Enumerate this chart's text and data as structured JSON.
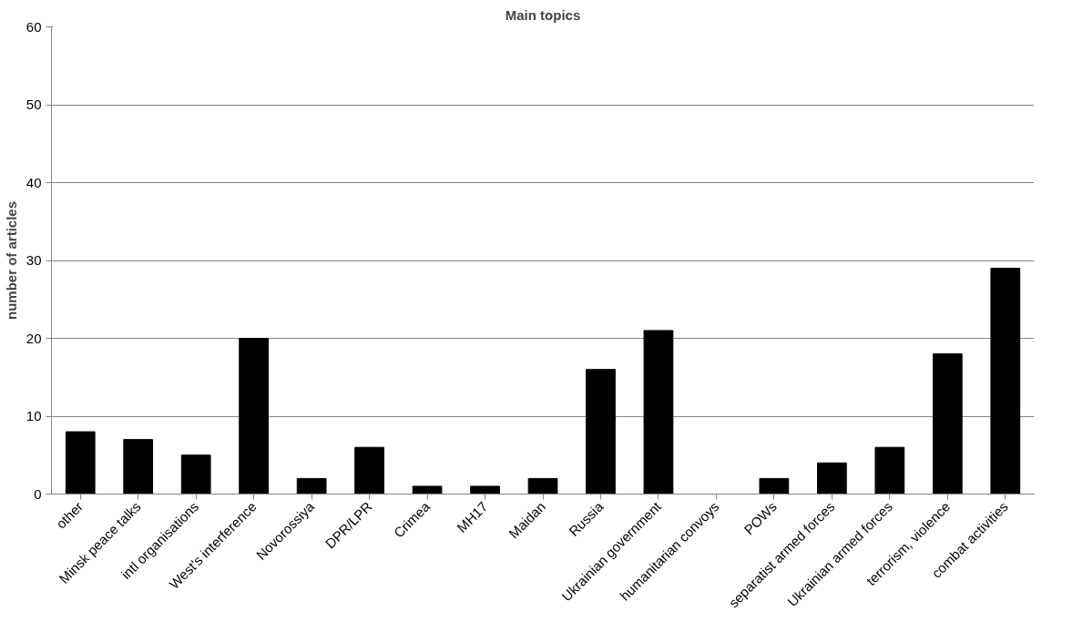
{
  "chart_data": {
    "type": "bar",
    "title": "Main topics",
    "ylabel": "number of articles",
    "categories": [
      "other",
      "Minsk peace talks",
      "intl organisations",
      "West's interference",
      "Novorossiya",
      "DPR/LPR",
      "Crimea",
      "MH17",
      "Maidan",
      "Russia",
      "Ukrainian government",
      "humanitarian convoys",
      "POWs",
      "separatist armed forces",
      "Ukrainian armed forces",
      "terrorism, violence",
      "combat activities"
    ],
    "values": [
      8,
      7,
      5,
      20,
      2,
      6,
      1,
      1,
      2,
      16,
      21,
      0,
      2,
      4,
      6,
      18,
      29
    ],
    "color": "#000000",
    "ylim": [
      0,
      60
    ],
    "yticks": [
      0,
      10,
      20,
      30,
      40,
      50,
      60
    ],
    "grid": "y"
  }
}
